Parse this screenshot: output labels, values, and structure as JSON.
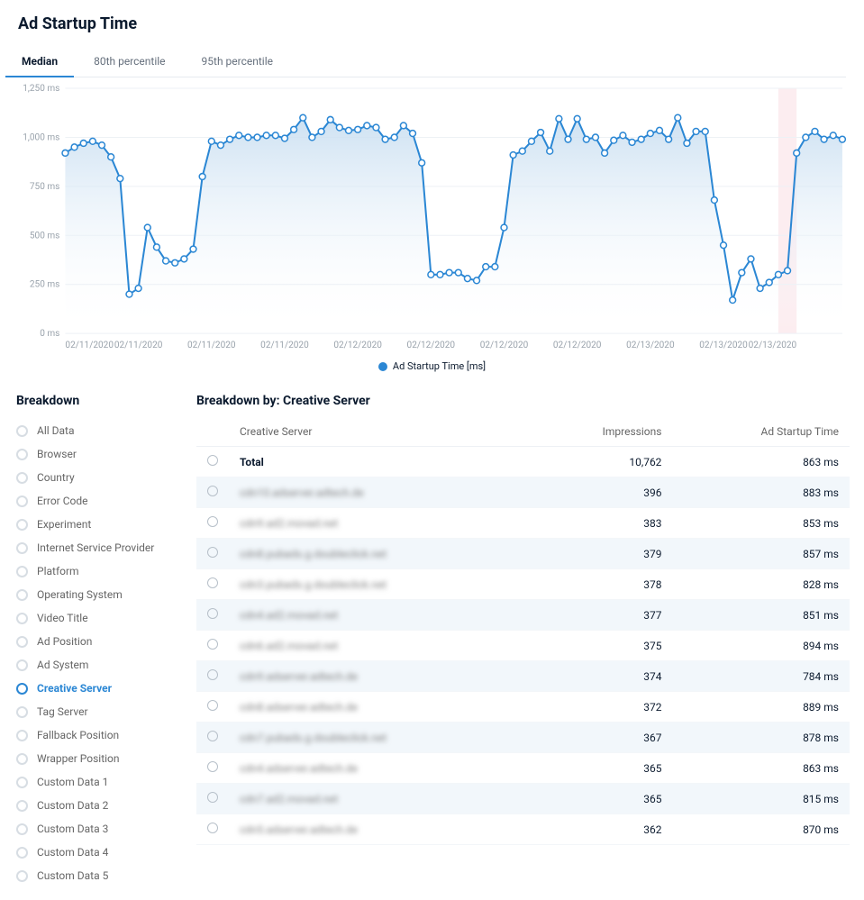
{
  "header": {
    "title": "Ad Startup Time",
    "tabs": [
      {
        "label": "Median",
        "active": true
      },
      {
        "label": "80th percentile",
        "active": false
      },
      {
        "label": "95th percentile",
        "active": false
      }
    ]
  },
  "chart": {
    "type": "area-line",
    "legend_label": "Ad Startup Time [ms]",
    "colors": {
      "line": "#2b87d4",
      "fill_top": "#c8def1",
      "fill_bottom": "#ffffff",
      "marker_stroke": "#2b87d4",
      "marker_fill": "#ffffff",
      "grid": "#edf1f5",
      "axis_text": "#9aa3ac",
      "highlight_band": "#fbe6ea"
    },
    "ylim": [
      0,
      1250
    ],
    "yticks": [
      0,
      250,
      500,
      750,
      1000,
      1250
    ],
    "ytick_labels": [
      "0 ms",
      "250 ms",
      "500 ms",
      "750 ms",
      "1,000 ms",
      "1,250 ms"
    ],
    "xticks": [
      0,
      8,
      16,
      24,
      32,
      40,
      48,
      56,
      64,
      72,
      80
    ],
    "xtick_labels": [
      "02/11/2020",
      "02/11/2020",
      "02/11/2020",
      "02/11/2020",
      "02/12/2020",
      "02/12/2020",
      "02/12/2020",
      "02/12/2020",
      "02/13/2020",
      "02/13/2020",
      "02/13/2020"
    ],
    "highlight_band": {
      "from": 78,
      "to": 80
    },
    "marker_radius": 3.4,
    "line_width": 2,
    "data": [
      920,
      950,
      970,
      980,
      960,
      900,
      790,
      200,
      230,
      540,
      440,
      370,
      360,
      380,
      430,
      800,
      980,
      960,
      990,
      1010,
      1000,
      1000,
      1010,
      1010,
      995,
      1040,
      1100,
      1000,
      1030,
      1090,
      1050,
      1035,
      1040,
      1060,
      1050,
      990,
      1000,
      1060,
      1020,
      870,
      300,
      300,
      310,
      310,
      280,
      270,
      340,
      340,
      540,
      910,
      930,
      980,
      1025,
      930,
      1095,
      990,
      1095,
      990,
      1000,
      920,
      985,
      1010,
      975,
      990,
      1020,
      1035,
      990,
      1100,
      970,
      1030,
      1030,
      680,
      450,
      170,
      310,
      380,
      230,
      260,
      300,
      320,
      920,
      1000,
      1030,
      990,
      1010,
      990
    ]
  },
  "sidebar": {
    "title": "Breakdown",
    "items": [
      {
        "label": "All Data",
        "active": false
      },
      {
        "label": "Browser",
        "active": false
      },
      {
        "label": "Country",
        "active": false
      },
      {
        "label": "Error Code",
        "active": false
      },
      {
        "label": "Experiment",
        "active": false
      },
      {
        "label": "Internet Service Provider",
        "active": false
      },
      {
        "label": "Platform",
        "active": false
      },
      {
        "label": "Operating System",
        "active": false
      },
      {
        "label": "Video Title",
        "active": false
      },
      {
        "label": "Ad Position",
        "active": false
      },
      {
        "label": "Ad System",
        "active": false
      },
      {
        "label": "Creative Server",
        "active": true
      },
      {
        "label": "Tag Server",
        "active": false
      },
      {
        "label": "Fallback Position",
        "active": false
      },
      {
        "label": "Wrapper Position",
        "active": false
      },
      {
        "label": "Custom Data 1",
        "active": false
      },
      {
        "label": "Custom Data 2",
        "active": false
      },
      {
        "label": "Custom Data 3",
        "active": false
      },
      {
        "label": "Custom Data 4",
        "active": false
      },
      {
        "label": "Custom Data 5",
        "active": false
      }
    ]
  },
  "table": {
    "title": "Breakdown by: Creative Server",
    "columns": [
      "",
      "Creative Server",
      "Impressions",
      "Ad Startup Time"
    ],
    "rows": [
      {
        "server": "Total",
        "impressions": "10,762",
        "time": "863 ms",
        "bold": true,
        "blurred": false,
        "alt": false
      },
      {
        "server": "cdn10.adserver.adtech.de",
        "impressions": "396",
        "time": "883 ms",
        "bold": false,
        "blurred": true,
        "alt": true
      },
      {
        "server": "cdn9.ad2.movad.net",
        "impressions": "383",
        "time": "853 ms",
        "bold": false,
        "blurred": true,
        "alt": false
      },
      {
        "server": "cdn8.pubads.g.doubleclick.net",
        "impressions": "379",
        "time": "857 ms",
        "bold": false,
        "blurred": true,
        "alt": true
      },
      {
        "server": "cdn3.pubads.g.doubleclick.net",
        "impressions": "378",
        "time": "828 ms",
        "bold": false,
        "blurred": true,
        "alt": false
      },
      {
        "server": "cdn4.ad2.movad.net",
        "impressions": "377",
        "time": "851 ms",
        "bold": false,
        "blurred": true,
        "alt": true
      },
      {
        "server": "cdn6.ad2.movad.net",
        "impressions": "375",
        "time": "894 ms",
        "bold": false,
        "blurred": true,
        "alt": false
      },
      {
        "server": "cdn9.adserver.adtech.de",
        "impressions": "374",
        "time": "784 ms",
        "bold": false,
        "blurred": true,
        "alt": true
      },
      {
        "server": "cdn8.adserver.adtech.de",
        "impressions": "372",
        "time": "889 ms",
        "bold": false,
        "blurred": true,
        "alt": false
      },
      {
        "server": "cdn7.pubads.g.doubleclick.net",
        "impressions": "367",
        "time": "878 ms",
        "bold": false,
        "blurred": true,
        "alt": true
      },
      {
        "server": "cdn4.adserver.adtech.de",
        "impressions": "365",
        "time": "863 ms",
        "bold": false,
        "blurred": true,
        "alt": false
      },
      {
        "server": "cdn7.ad2.movad.net",
        "impressions": "365",
        "time": "815 ms",
        "bold": false,
        "blurred": true,
        "alt": true
      },
      {
        "server": "cdn5.adserver.adtech.de",
        "impressions": "362",
        "time": "870 ms",
        "bold": false,
        "blurred": true,
        "alt": false
      }
    ]
  }
}
